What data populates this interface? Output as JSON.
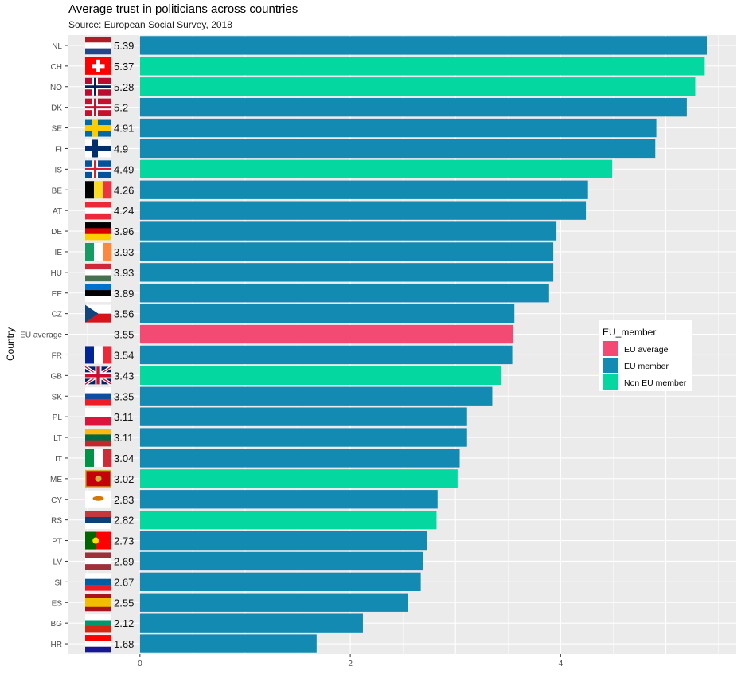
{
  "chart_data": {
    "type": "bar",
    "orientation": "horizontal",
    "title": "Average trust in politicians across countries",
    "subtitle": "Source: European Social Survey, 2018",
    "xlabel": "",
    "ylabel": "Country",
    "xlim": [
      -0.68,
      5.67
    ],
    "xticks": [
      0,
      2,
      4
    ],
    "grid": true,
    "legend": {
      "title": "EU_member",
      "position": "right",
      "entries": [
        {
          "label": "EU average",
          "color": "#F24A72"
        },
        {
          "label": "EU member",
          "color": "#128AB2"
        },
        {
          "label": "Non EU member",
          "color": "#05D7A0"
        }
      ]
    },
    "categories": [
      "NL",
      "CH",
      "NO",
      "DK",
      "SE",
      "FI",
      "IS",
      "BE",
      "AT",
      "DE",
      "IE",
      "HU",
      "EE",
      "CZ",
      "EU average",
      "FR",
      "GB",
      "SK",
      "PL",
      "LT",
      "IT",
      "ME",
      "CY",
      "RS",
      "PT",
      "LV",
      "SI",
      "ES",
      "BG",
      "HR"
    ],
    "values": [
      5.39,
      5.37,
      5.28,
      5.2,
      4.91,
      4.9,
      4.49,
      4.26,
      4.24,
      3.96,
      3.93,
      3.93,
      3.89,
      3.56,
      3.55,
      3.54,
      3.43,
      3.35,
      3.11,
      3.11,
      3.04,
      3.02,
      2.83,
      2.82,
      2.73,
      2.69,
      2.67,
      2.55,
      2.12,
      1.68
    ],
    "value_labels": [
      "5.39",
      "5.37",
      "5.28",
      "5.2",
      "4.91",
      "4.9",
      "4.49",
      "4.26",
      "4.24",
      "3.96",
      "3.93",
      "3.93",
      "3.89",
      "3.56",
      "3.55",
      "3.54",
      "3.43",
      "3.35",
      "3.11",
      "3.11",
      "3.04",
      "3.02",
      "2.83",
      "2.82",
      "2.73",
      "2.69",
      "2.67",
      "2.55",
      "2.12",
      "1.68"
    ],
    "groups": [
      "EU member",
      "Non EU member",
      "Non EU member",
      "EU member",
      "EU member",
      "EU member",
      "Non EU member",
      "EU member",
      "EU member",
      "EU member",
      "EU member",
      "EU member",
      "EU member",
      "EU member",
      "EU average",
      "EU member",
      "Non EU member",
      "EU member",
      "EU member",
      "EU member",
      "EU member",
      "Non EU member",
      "EU member",
      "Non EU member",
      "EU member",
      "EU member",
      "EU member",
      "EU member",
      "EU member",
      "EU member"
    ]
  }
}
